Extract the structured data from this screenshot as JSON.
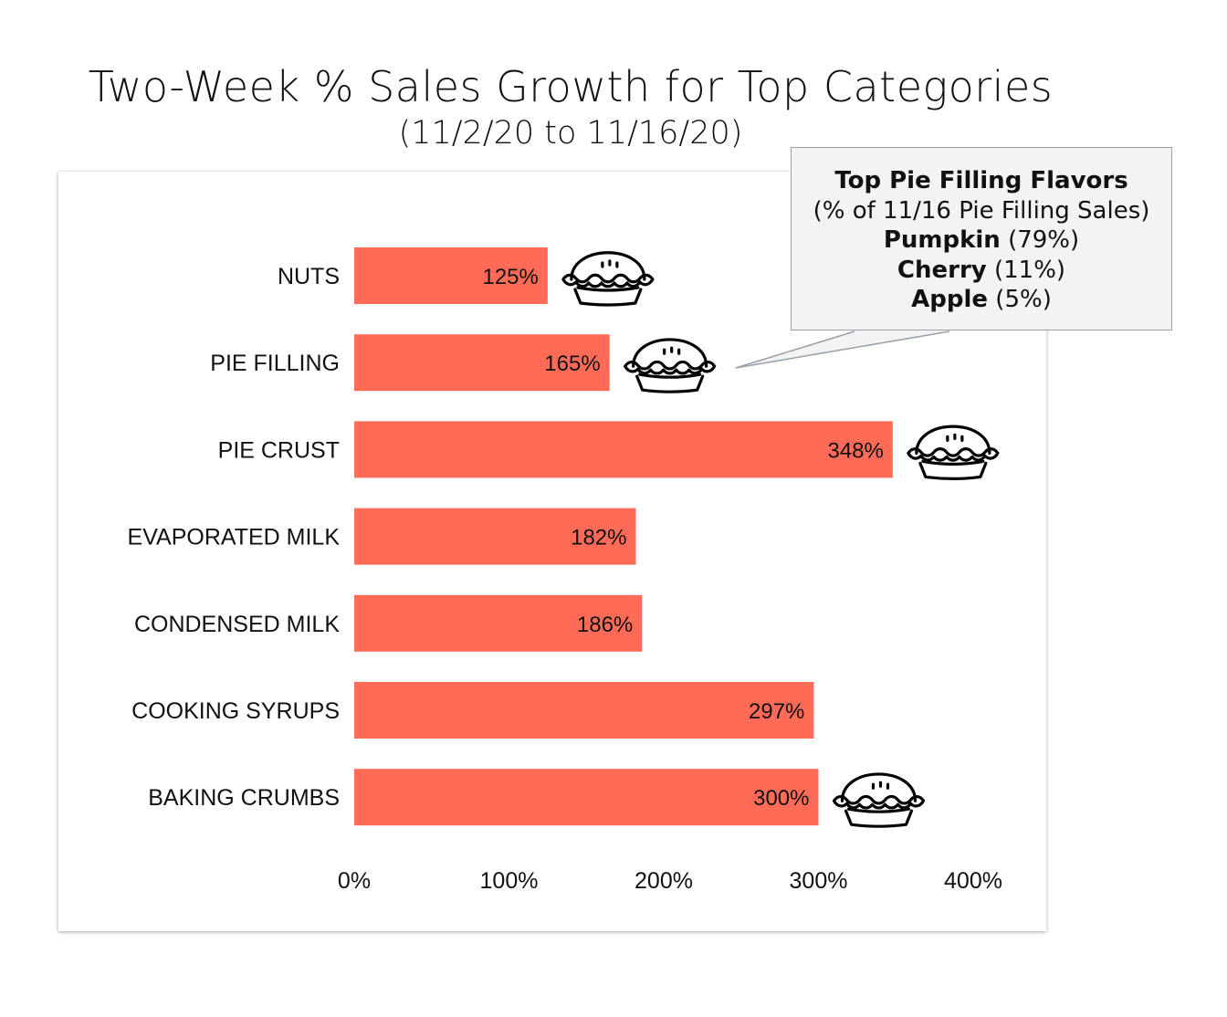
{
  "chart_data": {
    "type": "bar",
    "orientation": "horizontal",
    "title": "Two-Week % Sales Growth for Top Categories",
    "subtitle": "(11/2/20 to 11/16/20)",
    "categories": [
      "NUTS",
      "PIE FILLING",
      "PIE CRUST",
      "EVAPORATED MILK",
      "CONDENSED MILK",
      "COOKING SYRUPS",
      "BAKING CRUMBS"
    ],
    "values": [
      125,
      165,
      348,
      182,
      186,
      297,
      300
    ],
    "value_labels": [
      "125%",
      "165%",
      "348%",
      "182%",
      "186%",
      "297%",
      "300%"
    ],
    "pie_icon": [
      true,
      true,
      true,
      false,
      false,
      false,
      true
    ],
    "xlim": [
      0,
      400
    ],
    "xticks": [
      0,
      100,
      200,
      300,
      400
    ],
    "xtick_labels": [
      "0%",
      "100%",
      "200%",
      "300%",
      "400%"
    ],
    "xlabel": "",
    "ylabel": "",
    "grid": false,
    "bar_color": "#ff6b57",
    "annotation": {
      "target": "PIE FILLING",
      "heading": "Top Pie Filling Flavors",
      "subheading": "(% of 11/16 Pie Filling Sales)",
      "items": [
        {
          "name": "Pumpkin",
          "value": "(79%)"
        },
        {
          "name": "Cherry",
          "value": "(11%)"
        },
        {
          "name": "Apple",
          "value": "(5%)"
        }
      ]
    }
  },
  "icons": {
    "pie": "pie-icon"
  }
}
